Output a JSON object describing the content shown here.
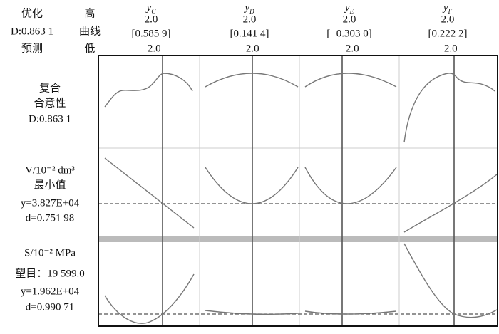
{
  "header": {
    "optimal": "优化",
    "desirability": "D:0.863 1",
    "predict": "预测",
    "high": "高",
    "current": "曲线",
    "low": "低"
  },
  "columns": [
    {
      "name": "y",
      "sub": "C",
      "high": "2.0",
      "current": "[0.585 9]",
      "low": "−2.0"
    },
    {
      "name": "y",
      "sub": "D",
      "high": "2.0",
      "current": "[0.141 4]",
      "low": "−2.0"
    },
    {
      "name": "y",
      "sub": "E",
      "high": "2.0",
      "current": "[−0.303 0]",
      "low": "−2.0"
    },
    {
      "name": "y",
      "sub": "F",
      "high": "2.0",
      "current": "[0.222 2]",
      "low": "−2.0"
    }
  ],
  "rows": [
    {
      "lines": [
        "复合",
        "合意性",
        "D:0.863 1"
      ]
    },
    {
      "lines": [
        "V/10⁻² dm³",
        "最小值",
        "y=3.827E+04",
        "d=0.751 98"
      ]
    },
    {
      "lines": [
        "S/10⁻² MPa",
        "望目：19 599.0",
        "y=1.962E+04",
        "d=0.990 71"
      ]
    }
  ]
}
